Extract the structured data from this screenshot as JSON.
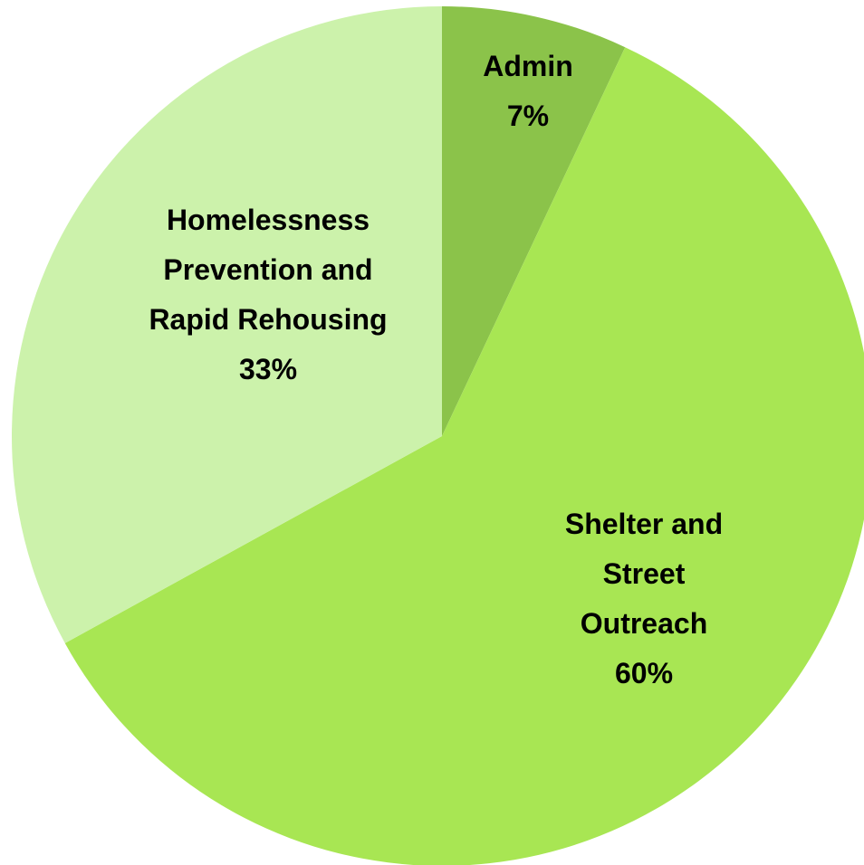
{
  "chart_data": {
    "type": "pie",
    "title": "",
    "start_angle_deg": 0,
    "direction": "clockwise",
    "slices": [
      {
        "label_lines": [
          "Admin"
        ],
        "value": 7,
        "value_label": "7%",
        "color": "#8bc34a"
      },
      {
        "label_lines": [
          "Shelter and",
          "Street",
          "Outreach"
        ],
        "value": 60,
        "value_label": "60%",
        "color": "#a8e653"
      },
      {
        "label_lines": [
          "Homelessness",
          "Prevention and",
          "Rapid Rehousing"
        ],
        "value": 33,
        "value_label": "33%",
        "color": "#ccf2ab"
      }
    ]
  }
}
